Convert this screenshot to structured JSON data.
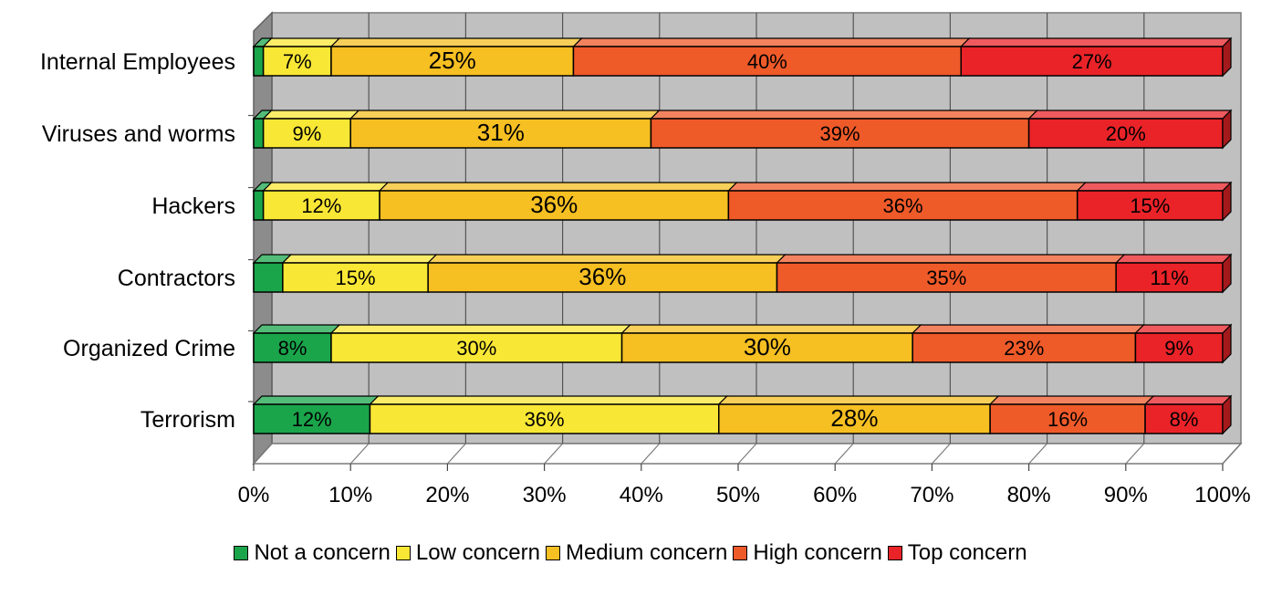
{
  "chart_data": {
    "type": "bar",
    "orientation": "horizontal",
    "stacked": "percent",
    "style": "3d",
    "categories": [
      "Internal Employees",
      "Viruses and worms",
      "Hackers",
      "Contractors",
      "Organized Crime",
      "Terrorism"
    ],
    "series": [
      {
        "name": "Not a concern",
        "color": "#1aa54b",
        "values": [
          1,
          1,
          1,
          3,
          8,
          12
        ],
        "labels": [
          "",
          "",
          "",
          "",
          "8%",
          "12%"
        ]
      },
      {
        "name": "Low concern",
        "color": "#f9e735",
        "values": [
          7,
          9,
          12,
          15,
          30,
          36
        ],
        "labels": [
          "7%",
          "9%",
          "12%",
          "15%",
          "30%",
          "36%"
        ]
      },
      {
        "name": "Medium concern",
        "color": "#f6bf22",
        "values": [
          25,
          31,
          36,
          36,
          30,
          28
        ],
        "labels": [
          "25%",
          "31%",
          "36%",
          "36%",
          "30%",
          "28%"
        ]
      },
      {
        "name": "High concern",
        "color": "#ef5a29",
        "values": [
          40,
          39,
          36,
          35,
          23,
          16
        ],
        "labels": [
          "40%",
          "39%",
          "36%",
          "35%",
          "23%",
          "16%"
        ]
      },
      {
        "name": "Top concern",
        "color": "#ea2328",
        "values": [
          27,
          20,
          15,
          11,
          9,
          8
        ],
        "labels": [
          "27%",
          "20%",
          "15%",
          "11%",
          "9%",
          "8%"
        ]
      }
    ],
    "xlim": [
      0,
      100
    ],
    "x_ticks": [
      "0%",
      "10%",
      "20%",
      "30%",
      "40%",
      "50%",
      "60%",
      "70%",
      "80%",
      "90%",
      "100%"
    ],
    "title": "",
    "xlabel": "",
    "ylabel": "",
    "grid": true,
    "legend_position": "bottom"
  }
}
